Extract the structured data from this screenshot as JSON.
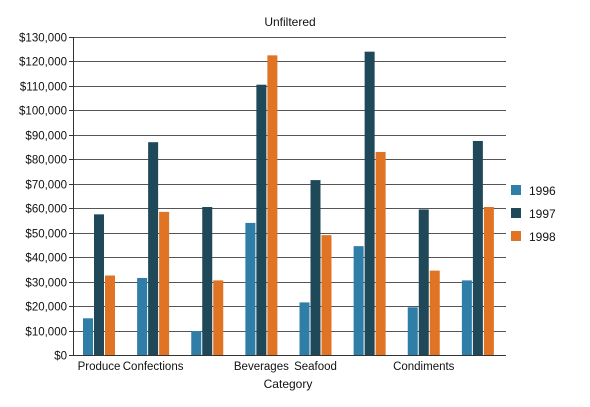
{
  "chart_data": {
    "type": "bar",
    "title": "Unfiltered",
    "xlabel": "Category",
    "ylabel": "",
    "ylim": [
      0,
      130000
    ],
    "yticks": [
      0,
      10000,
      20000,
      30000,
      40000,
      50000,
      60000,
      70000,
      80000,
      90000,
      100000,
      110000,
      120000,
      130000
    ],
    "ytick_labels": [
      "$0",
      "$10,000",
      "$20,000",
      "$30,000",
      "$40,000",
      "$50,000",
      "$60,000",
      "$70,000",
      "$80,000",
      "$90,000",
      "$100,000",
      "$110,000",
      "$120,000",
      "$130,000"
    ],
    "categories": [
      "Produce",
      "Confections",
      "",
      "Beverages",
      "Seafood",
      "",
      "Condiments",
      ""
    ],
    "grid": true,
    "legend_position": "right",
    "series": [
      {
        "name": "1996",
        "color": "#2f7ea7",
        "values": [
          15000,
          31500,
          9800,
          54000,
          21500,
          44500,
          19500,
          30500
        ]
      },
      {
        "name": "1997",
        "color": "#1f4859",
        "values": [
          57500,
          87000,
          60500,
          110500,
          71500,
          124000,
          59500,
          87500
        ]
      },
      {
        "name": "1998",
        "color": "#e07424",
        "values": [
          32500,
          58500,
          30500,
          122500,
          49000,
          83000,
          34500,
          60500
        ]
      }
    ]
  }
}
